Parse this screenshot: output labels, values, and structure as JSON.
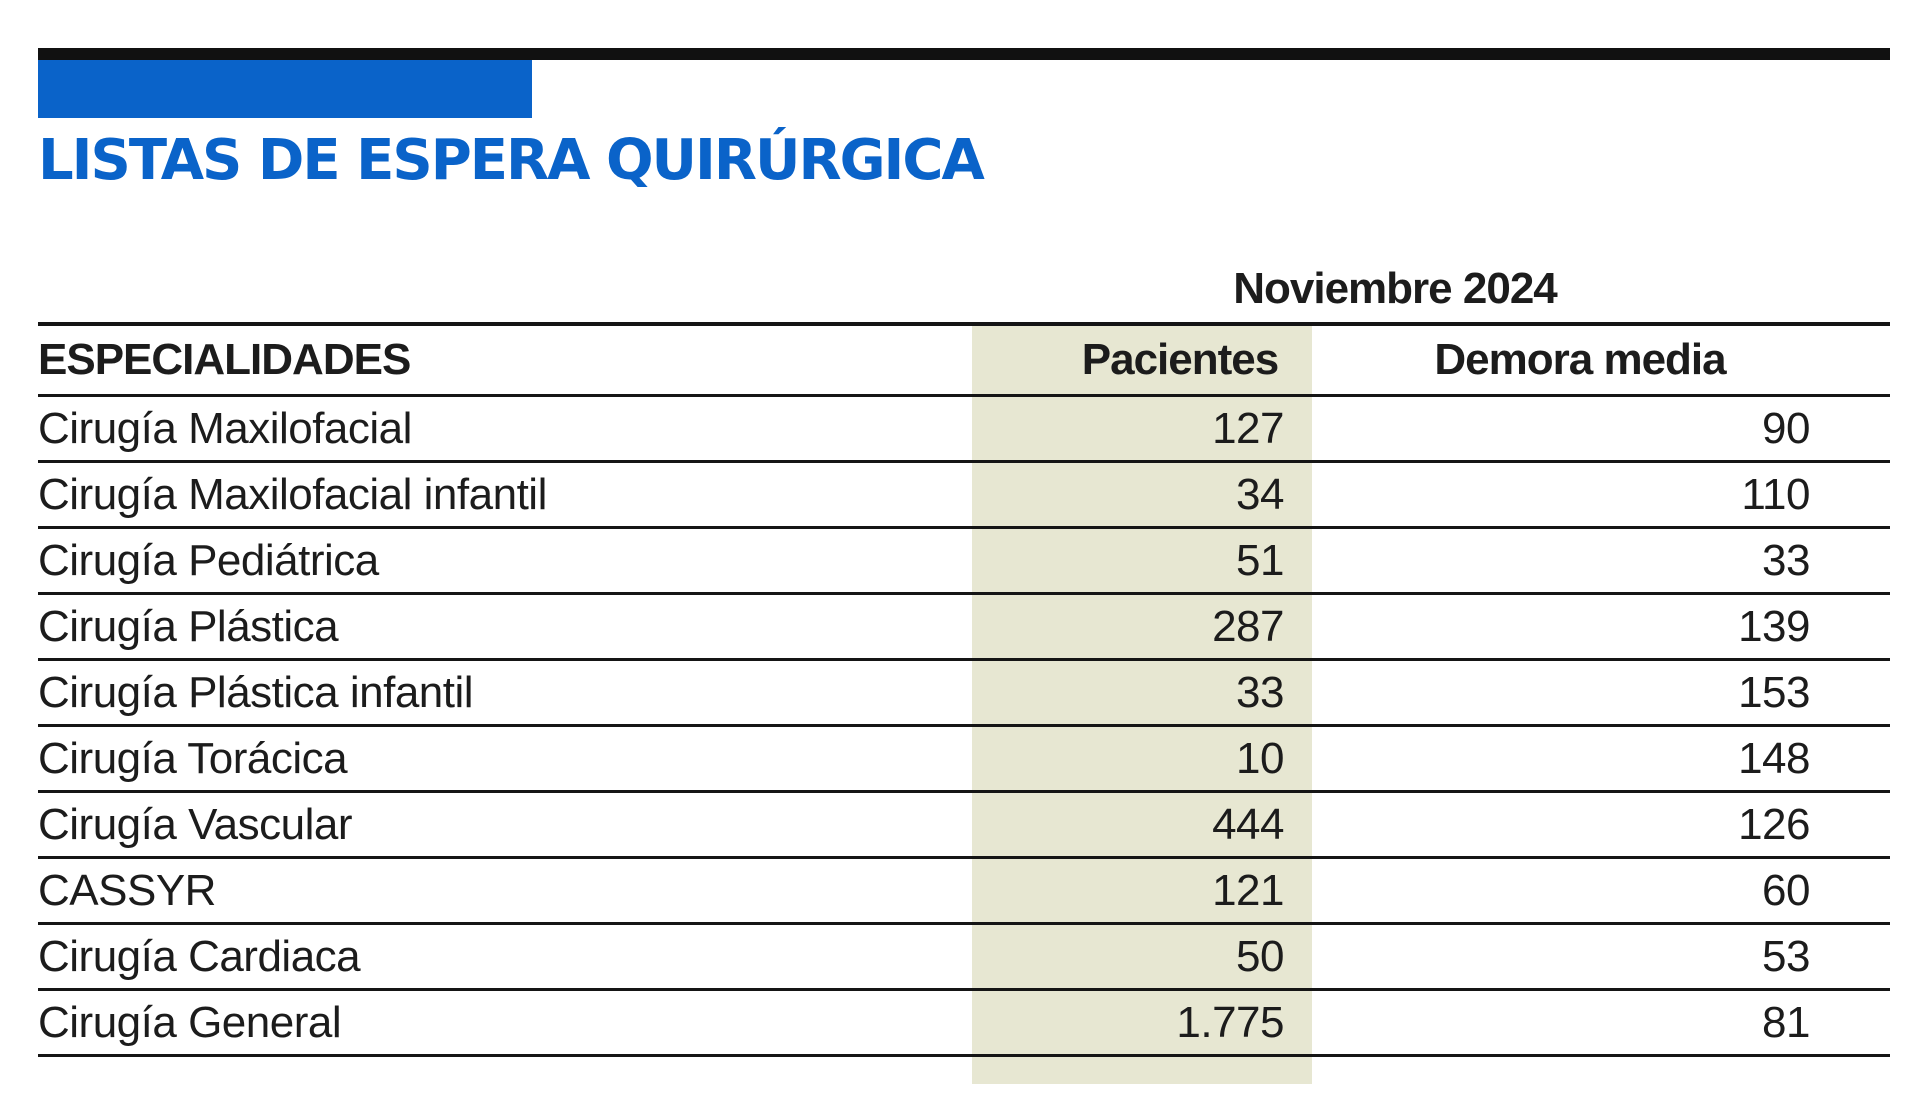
{
  "title": "LISTAS DE ESPERA QUIRÚRGICA",
  "period": "Noviembre 2024",
  "colors": {
    "accent_blue": "#0a63c9",
    "column_shade": "#e7e7d2",
    "rule_black": "#111111"
  },
  "columns": {
    "specialty": "ESPECIALIDADES",
    "patients": "Pacientes",
    "avg_delay": "Demora media"
  },
  "rows": [
    {
      "specialty": "Cirugía Maxilofacial",
      "patients": "127",
      "avg_delay": "90"
    },
    {
      "specialty": "Cirugía Maxilofacial infantil",
      "patients": "34",
      "avg_delay": "110"
    },
    {
      "specialty": "Cirugía Pediátrica",
      "patients": "51",
      "avg_delay": "33"
    },
    {
      "specialty": "Cirugía Plástica",
      "patients": "287",
      "avg_delay": "139"
    },
    {
      "specialty": "Cirugía Plástica infantil",
      "patients": "33",
      "avg_delay": "153"
    },
    {
      "specialty": "Cirugía Torácica",
      "patients": "10",
      "avg_delay": "148"
    },
    {
      "specialty": "Cirugía Vascular",
      "patients": "444",
      "avg_delay": "126"
    },
    {
      "specialty": "CASSYR",
      "patients": "121",
      "avg_delay": "60"
    },
    {
      "specialty": "Cirugía Cardiaca",
      "patients": "50",
      "avg_delay": "53"
    },
    {
      "specialty": "Cirugía General",
      "patients": "1.775",
      "avg_delay": "81"
    }
  ]
}
